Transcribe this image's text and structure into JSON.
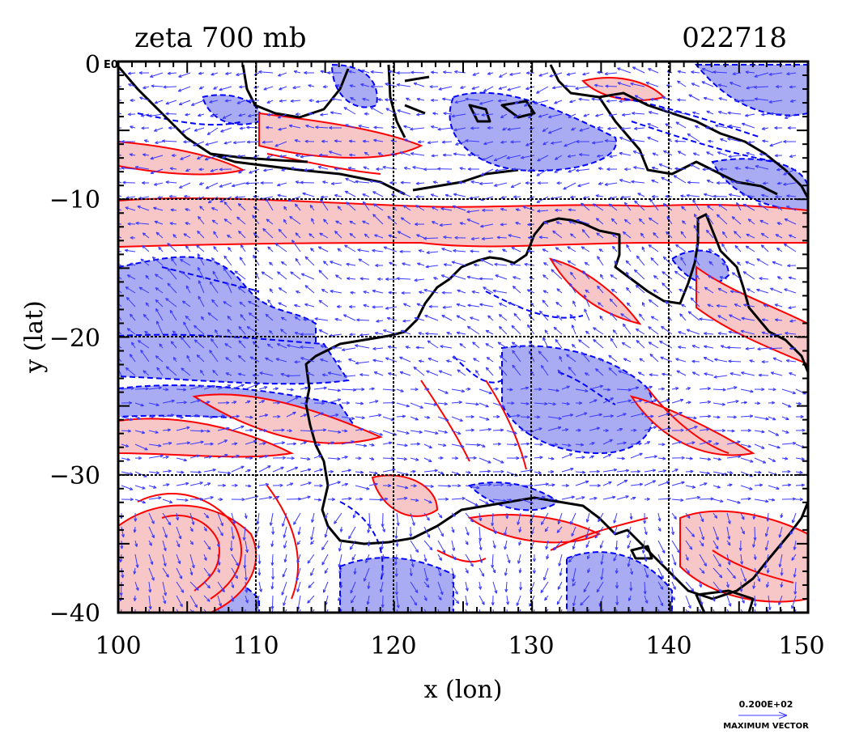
{
  "title": {
    "left": "zeta 700 mb",
    "right": "022718"
  },
  "x_axis": {
    "label": "x (lon)",
    "ticks": [
      "100",
      "110",
      "120",
      "130",
      "140",
      "150"
    ]
  },
  "y_axis": {
    "label": "y (lat)",
    "ticks": [
      "0",
      "−10",
      "−20",
      "−30",
      "−40"
    ],
    "top_tick_suffix": "E0"
  },
  "legend": {
    "magnitude": "0.200E+02",
    "caption": "MAXIMUM VECTOR"
  },
  "colors": {
    "positive_fill": "#f7c6c6",
    "positive_line": "#ff0000",
    "negative_fill": "#a9acf2",
    "negative_line": "#0000ff",
    "coast": "#000000",
    "vector": "#3a3aff"
  },
  "map_data": {
    "type": "contour_vector_map",
    "field": "relative vorticity (zeta) at 700 mb",
    "lon_range": [
      100,
      150
    ],
    "lat_range": [
      -40,
      0
    ],
    "grid_lines": {
      "lon": [
        110,
        120,
        130,
        140
      ],
      "lat": [
        -10,
        -20,
        -30
      ]
    },
    "region": "Australia, Indonesia, New Guinea"
  }
}
